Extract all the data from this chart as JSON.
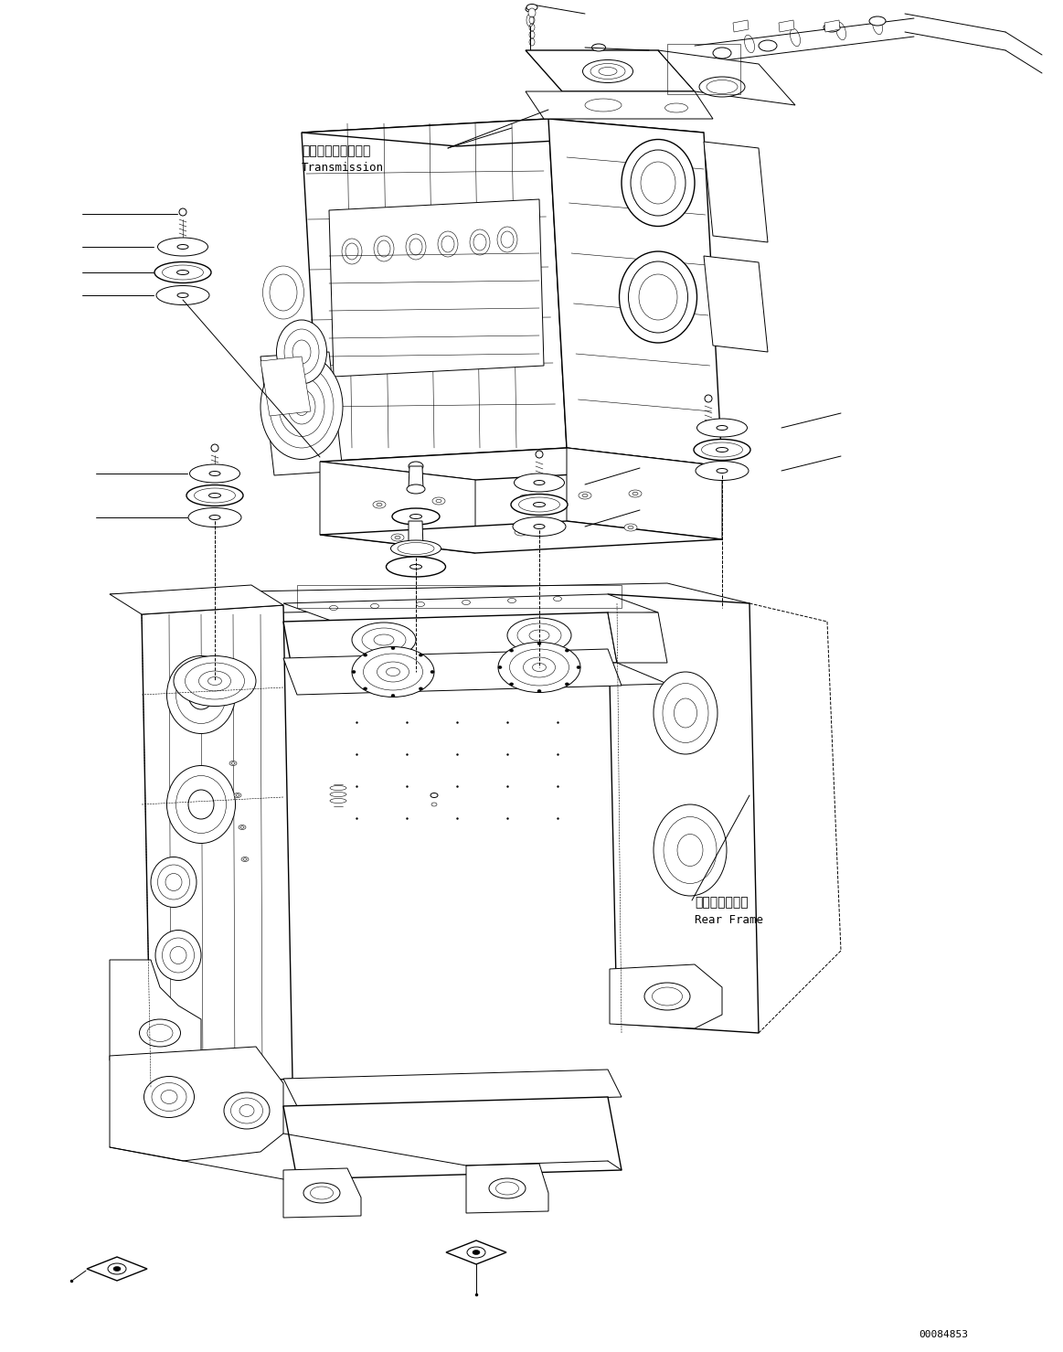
{
  "background_color": "#ffffff",
  "line_color": "#000000",
  "fig_width": 11.63,
  "fig_height": 14.79,
  "dpi": 100,
  "label_transmission_jp": "トランスミッション",
  "label_transmission_en": "Transmission",
  "label_rear_frame_jp": "リヤーフレーム",
  "label_rear_frame_en": "Rear Frame",
  "part_number": "00084853",
  "font_family": "monospace"
}
